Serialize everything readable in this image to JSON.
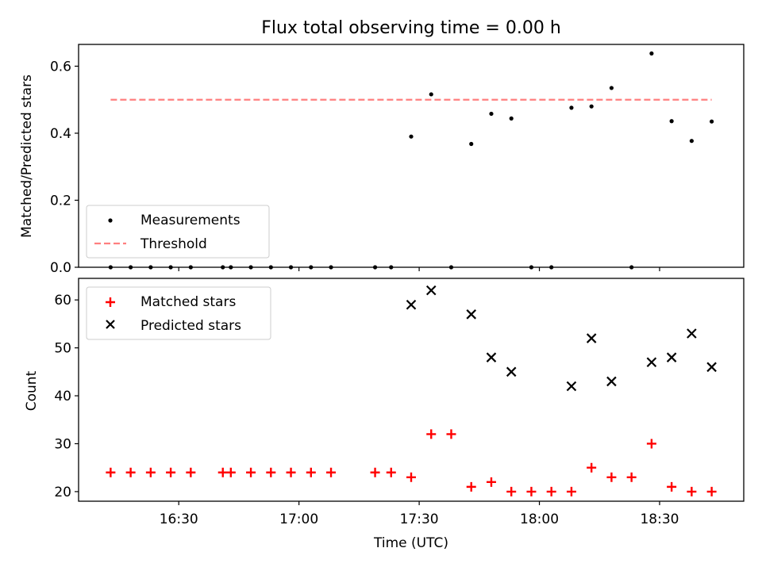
{
  "chart_data": [
    {
      "type": "scatter",
      "title": "Flux total observing time = 0.00 h",
      "ylabel": "Matched/Predicted stars",
      "ylim": [
        0,
        0.665
      ],
      "y_ticks": [
        "0.0",
        "0.2",
        "0.4",
        "0.6"
      ],
      "legend": {
        "placement": "lower-left",
        "entries": [
          "Measurements",
          "Threshold"
        ]
      },
      "series": [
        {
          "name": "Measurements",
          "marker": "dot",
          "color": "#000000",
          "x": [
            "16:13",
            "16:18",
            "16:23",
            "16:28",
            "16:33",
            "16:41",
            "16:43",
            "16:48",
            "16:53",
            "16:58",
            "17:03",
            "17:08",
            "17:19",
            "17:23",
            "17:28",
            "17:33",
            "17:38",
            "17:43",
            "17:48",
            "17:53",
            "17:58",
            "18:03",
            "18:08",
            "18:13",
            "18:18",
            "18:23",
            "18:28",
            "18:33",
            "18:38",
            "18:43"
          ],
          "y": [
            0,
            0,
            0,
            0,
            0,
            0,
            0,
            0,
            0,
            0,
            0,
            0,
            0,
            0,
            0.39,
            0.516,
            0,
            0.368,
            0.458,
            0.444,
            0,
            0,
            0.476,
            0.48,
            0.535,
            0,
            0.638,
            0.436,
            0.377,
            0.435
          ]
        },
        {
          "name": "Threshold",
          "style": "dashed-line",
          "color": "#ff7f7f",
          "x": [
            "16:13",
            "18:43"
          ],
          "y": [
            0.5,
            0.5
          ]
        }
      ]
    },
    {
      "type": "scatter",
      "xlabel": "Time (UTC)",
      "ylabel": "Count",
      "ylim": [
        18,
        64.5
      ],
      "y_ticks": [
        "20",
        "30",
        "40",
        "50",
        "60"
      ],
      "x_ticks": [
        "16:30",
        "17:00",
        "17:30",
        "18:00",
        "18:30"
      ],
      "xlim": [
        "16:05",
        "18:51"
      ],
      "legend": {
        "placement": "upper-left",
        "entries": [
          "Matched stars",
          "Predicted stars"
        ]
      },
      "series": [
        {
          "name": "Matched stars",
          "marker": "plus",
          "color": "#ff0000",
          "x": [
            "16:13",
            "16:18",
            "16:23",
            "16:28",
            "16:33",
            "16:41",
            "16:43",
            "16:48",
            "16:53",
            "16:58",
            "17:03",
            "17:08",
            "17:19",
            "17:23",
            "17:28",
            "17:33",
            "17:38",
            "17:43",
            "17:48",
            "17:53",
            "17:58",
            "18:03",
            "18:08",
            "18:13",
            "18:18",
            "18:23",
            "18:28",
            "18:33",
            "18:38",
            "18:43"
          ],
          "y": [
            24,
            24,
            24,
            24,
            24,
            24,
            24,
            24,
            24,
            24,
            24,
            24,
            24,
            24,
            23,
            32,
            32,
            21,
            22,
            20,
            20,
            20,
            20,
            25,
            23,
            23,
            30,
            21,
            20,
            20
          ]
        },
        {
          "name": "Predicted stars",
          "marker": "x",
          "color": "#000000",
          "x": [
            "17:28",
            "17:33",
            "17:43",
            "17:48",
            "17:53",
            "18:08",
            "18:13",
            "18:18",
            "18:28",
            "18:33",
            "18:38",
            "18:43"
          ],
          "y": [
            59,
            62,
            57,
            48,
            45,
            42,
            52,
            43,
            47,
            48,
            53,
            46
          ]
        }
      ]
    }
  ]
}
